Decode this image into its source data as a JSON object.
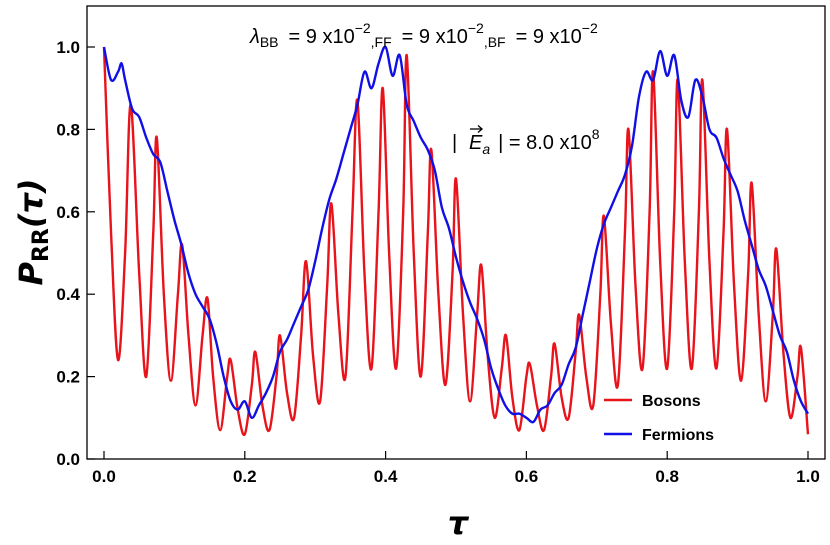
{
  "chart_data": {
    "type": "line",
    "xlim": [
      0,
      1
    ],
    "ylim": [
      0,
      1.1
    ],
    "xticks": [
      0.0,
      0.2,
      0.4,
      0.6,
      0.8,
      1.0
    ],
    "yticks": [
      0.0,
      0.2,
      0.4,
      0.6,
      0.8,
      1.0
    ],
    "xtick_labels": [
      "0.0",
      "0.2",
      "0.4",
      "0.6",
      "0.8",
      "1.0"
    ],
    "ytick_labels": [
      "0.0",
      "0.2",
      "0.4",
      "0.6",
      "0.8",
      "1.0"
    ],
    "xlabel": "τ",
    "ylabel_main": "P",
    "ylabel_sub": "RR",
    "ylabel_arg": "(τ)",
    "annotation_coupling": {
      "lambda": "λ",
      "bb_sub": "BB",
      "bb_val": "= 9 x10",
      "ff_sub": ",FF",
      "ff_val": "= 9 x10",
      "bf_sub": ",BF",
      "bf_val": "= 9 x10",
      "exp": "−2"
    },
    "annotation_field": {
      "left": "|",
      "symbol": "E",
      "sub": "a",
      "value": "| = 8.0 x10",
      "exp": "8"
    },
    "legend_position": "bottom-right",
    "grid": false,
    "series": [
      {
        "name": "Bosons",
        "color": "#e8131b",
        "points": [
          [
            0.0,
            1.0
          ],
          [
            0.01,
            0.55
          ],
          [
            0.02,
            0.24
          ],
          [
            0.03,
            0.5
          ],
          [
            0.038,
            0.86
          ],
          [
            0.05,
            0.45
          ],
          [
            0.06,
            0.2
          ],
          [
            0.07,
            0.55
          ],
          [
            0.075,
            0.78
          ],
          [
            0.085,
            0.4
          ],
          [
            0.095,
            0.19
          ],
          [
            0.105,
            0.4
          ],
          [
            0.111,
            0.52
          ],
          [
            0.12,
            0.3
          ],
          [
            0.13,
            0.13
          ],
          [
            0.14,
            0.3
          ],
          [
            0.147,
            0.39
          ],
          [
            0.155,
            0.2
          ],
          [
            0.165,
            0.07
          ],
          [
            0.175,
            0.2
          ],
          [
            0.18,
            0.24
          ],
          [
            0.19,
            0.12
          ],
          [
            0.2,
            0.06
          ],
          [
            0.21,
            0.18
          ],
          [
            0.215,
            0.26
          ],
          [
            0.225,
            0.13
          ],
          [
            0.235,
            0.07
          ],
          [
            0.245,
            0.2
          ],
          [
            0.25,
            0.3
          ],
          [
            0.26,
            0.16
          ],
          [
            0.27,
            0.1
          ],
          [
            0.28,
            0.3
          ],
          [
            0.287,
            0.48
          ],
          [
            0.297,
            0.25
          ],
          [
            0.307,
            0.14
          ],
          [
            0.317,
            0.42
          ],
          [
            0.323,
            0.62
          ],
          [
            0.333,
            0.35
          ],
          [
            0.343,
            0.2
          ],
          [
            0.353,
            0.6
          ],
          [
            0.36,
            0.87
          ],
          [
            0.37,
            0.45
          ],
          [
            0.38,
            0.22
          ],
          [
            0.39,
            0.6
          ],
          [
            0.396,
            0.9
          ],
          [
            0.405,
            0.5
          ],
          [
            0.415,
            0.22
          ],
          [
            0.425,
            0.6
          ],
          [
            0.43,
            0.98
          ],
          [
            0.44,
            0.5
          ],
          [
            0.45,
            0.2
          ],
          [
            0.46,
            0.55
          ],
          [
            0.465,
            0.75
          ],
          [
            0.475,
            0.4
          ],
          [
            0.485,
            0.18
          ],
          [
            0.495,
            0.45
          ],
          [
            0.5,
            0.68
          ],
          [
            0.51,
            0.35
          ],
          [
            0.52,
            0.14
          ],
          [
            0.53,
            0.35
          ],
          [
            0.536,
            0.47
          ],
          [
            0.545,
            0.25
          ],
          [
            0.555,
            0.1
          ],
          [
            0.565,
            0.22
          ],
          [
            0.571,
            0.3
          ],
          [
            0.58,
            0.15
          ],
          [
            0.59,
            0.07
          ],
          [
            0.6,
            0.2
          ],
          [
            0.605,
            0.23
          ],
          [
            0.615,
            0.13
          ],
          [
            0.625,
            0.07
          ],
          [
            0.635,
            0.2
          ],
          [
            0.64,
            0.28
          ],
          [
            0.65,
            0.15
          ],
          [
            0.66,
            0.1
          ],
          [
            0.67,
            0.26
          ],
          [
            0.675,
            0.35
          ],
          [
            0.685,
            0.2
          ],
          [
            0.695,
            0.13
          ],
          [
            0.705,
            0.4
          ],
          [
            0.71,
            0.59
          ],
          [
            0.72,
            0.33
          ],
          [
            0.73,
            0.18
          ],
          [
            0.74,
            0.55
          ],
          [
            0.745,
            0.8
          ],
          [
            0.755,
            0.42
          ],
          [
            0.765,
            0.22
          ],
          [
            0.775,
            0.6
          ],
          [
            0.78,
            0.94
          ],
          [
            0.79,
            0.48
          ],
          [
            0.8,
            0.22
          ],
          [
            0.81,
            0.6
          ],
          [
            0.815,
            0.92
          ],
          [
            0.825,
            0.48
          ],
          [
            0.835,
            0.22
          ],
          [
            0.845,
            0.6
          ],
          [
            0.85,
            0.92
          ],
          [
            0.86,
            0.48
          ],
          [
            0.87,
            0.22
          ],
          [
            0.88,
            0.55
          ],
          [
            0.885,
            0.8
          ],
          [
            0.895,
            0.42
          ],
          [
            0.905,
            0.19
          ],
          [
            0.915,
            0.45
          ],
          [
            0.92,
            0.67
          ],
          [
            0.93,
            0.35
          ],
          [
            0.94,
            0.14
          ],
          [
            0.95,
            0.35
          ],
          [
            0.955,
            0.51
          ],
          [
            0.965,
            0.26
          ],
          [
            0.975,
            0.1
          ],
          [
            0.985,
            0.2
          ],
          [
            0.99,
            0.27
          ],
          [
            1.0,
            0.06
          ]
        ]
      },
      {
        "name": "Fermions",
        "color": "#1010e6",
        "points": [
          [
            0.0,
            1.0
          ],
          [
            0.01,
            0.92
          ],
          [
            0.02,
            0.94
          ],
          [
            0.025,
            0.96
          ],
          [
            0.03,
            0.92
          ],
          [
            0.04,
            0.85
          ],
          [
            0.05,
            0.83
          ],
          [
            0.06,
            0.78
          ],
          [
            0.07,
            0.74
          ],
          [
            0.08,
            0.72
          ],
          [
            0.09,
            0.65
          ],
          [
            0.1,
            0.58
          ],
          [
            0.11,
            0.52
          ],
          [
            0.12,
            0.45
          ],
          [
            0.13,
            0.4
          ],
          [
            0.14,
            0.37
          ],
          [
            0.15,
            0.34
          ],
          [
            0.16,
            0.28
          ],
          [
            0.17,
            0.2
          ],
          [
            0.18,
            0.14
          ],
          [
            0.19,
            0.12
          ],
          [
            0.2,
            0.14
          ],
          [
            0.21,
            0.1
          ],
          [
            0.22,
            0.13
          ],
          [
            0.23,
            0.16
          ],
          [
            0.24,
            0.2
          ],
          [
            0.25,
            0.26
          ],
          [
            0.26,
            0.29
          ],
          [
            0.27,
            0.33
          ],
          [
            0.28,
            0.37
          ],
          [
            0.29,
            0.41
          ],
          [
            0.3,
            0.48
          ],
          [
            0.31,
            0.56
          ],
          [
            0.32,
            0.63
          ],
          [
            0.33,
            0.68
          ],
          [
            0.34,
            0.74
          ],
          [
            0.35,
            0.8
          ],
          [
            0.36,
            0.86
          ],
          [
            0.37,
            0.94
          ],
          [
            0.38,
            0.9
          ],
          [
            0.39,
            0.96
          ],
          [
            0.4,
            1.0
          ],
          [
            0.41,
            0.93
          ],
          [
            0.42,
            0.98
          ],
          [
            0.43,
            0.86
          ],
          [
            0.44,
            0.82
          ],
          [
            0.45,
            0.78
          ],
          [
            0.46,
            0.75
          ],
          [
            0.47,
            0.7
          ],
          [
            0.48,
            0.61
          ],
          [
            0.49,
            0.56
          ],
          [
            0.5,
            0.49
          ],
          [
            0.51,
            0.43
          ],
          [
            0.52,
            0.38
          ],
          [
            0.53,
            0.34
          ],
          [
            0.54,
            0.29
          ],
          [
            0.55,
            0.22
          ],
          [
            0.56,
            0.17
          ],
          [
            0.57,
            0.13
          ],
          [
            0.58,
            0.11
          ],
          [
            0.59,
            0.11
          ],
          [
            0.6,
            0.1
          ],
          [
            0.61,
            0.09
          ],
          [
            0.62,
            0.12
          ],
          [
            0.63,
            0.13
          ],
          [
            0.64,
            0.16
          ],
          [
            0.65,
            0.18
          ],
          [
            0.66,
            0.23
          ],
          [
            0.67,
            0.27
          ],
          [
            0.68,
            0.35
          ],
          [
            0.69,
            0.43
          ],
          [
            0.7,
            0.51
          ],
          [
            0.71,
            0.57
          ],
          [
            0.72,
            0.61
          ],
          [
            0.73,
            0.65
          ],
          [
            0.74,
            0.69
          ],
          [
            0.75,
            0.76
          ],
          [
            0.76,
            0.88
          ],
          [
            0.77,
            0.94
          ],
          [
            0.78,
            0.92
          ],
          [
            0.79,
            0.99
          ],
          [
            0.8,
            0.93
          ],
          [
            0.81,
            0.98
          ],
          [
            0.82,
            0.87
          ],
          [
            0.83,
            0.83
          ],
          [
            0.84,
            0.92
          ],
          [
            0.85,
            0.88
          ],
          [
            0.86,
            0.8
          ],
          [
            0.87,
            0.78
          ],
          [
            0.88,
            0.73
          ],
          [
            0.89,
            0.69
          ],
          [
            0.9,
            0.65
          ],
          [
            0.91,
            0.58
          ],
          [
            0.92,
            0.52
          ],
          [
            0.93,
            0.46
          ],
          [
            0.94,
            0.42
          ],
          [
            0.95,
            0.36
          ],
          [
            0.96,
            0.3
          ],
          [
            0.97,
            0.26
          ],
          [
            0.98,
            0.19
          ],
          [
            0.99,
            0.14
          ],
          [
            1.0,
            0.11
          ]
        ]
      }
    ]
  }
}
